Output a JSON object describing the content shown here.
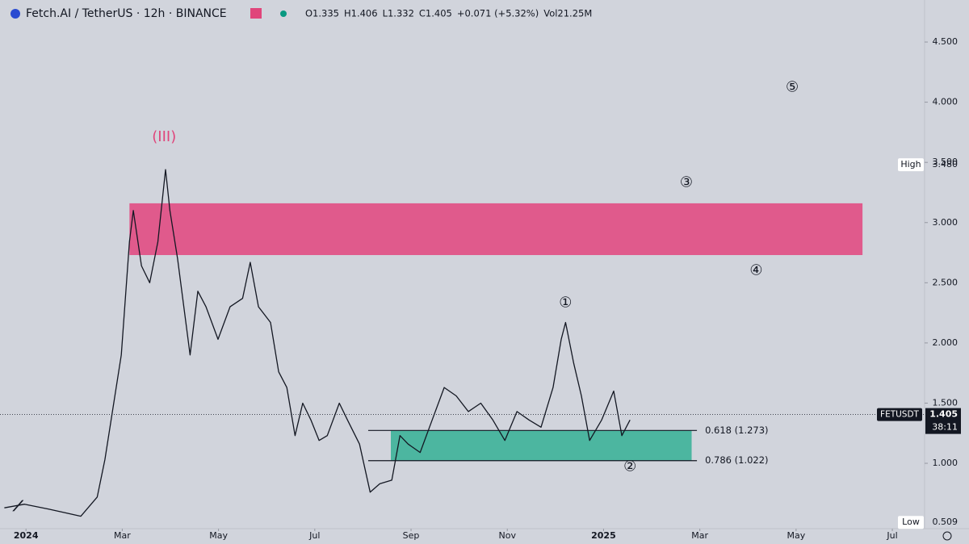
{
  "header": {
    "symbol": "Fetch.AI / TetherUS · 12h · BINANCE",
    "ohlc": [
      "O1.335",
      "H1.406",
      "L1.332",
      "C1.405",
      "+0.071 (+5.32%)",
      "Vol21.25M"
    ]
  },
  "chart_data": {
    "type": "line",
    "x": [
      -0.45,
      -0.03,
      0.47,
      1.14,
      1.48,
      1.64,
      1.98,
      2.15,
      2.23,
      2.4,
      2.57,
      2.74,
      2.9,
      2.99,
      3.15,
      3.41,
      3.57,
      3.74,
      3.99,
      4.24,
      4.5,
      4.66,
      4.83,
      5.08,
      5.25,
      5.42,
      5.59,
      5.75,
      5.92,
      6.09,
      6.26,
      6.51,
      6.68,
      6.93,
      7.15,
      7.35,
      7.6,
      7.77,
      7.94,
      8.19,
      8.44,
      8.69,
      8.94,
      9.19,
      9.45,
      9.7,
      9.95,
      10.2,
      10.45,
      10.7,
      10.95,
      11.12,
      11.21,
      11.38,
      11.54,
      11.71,
      11.96,
      12.21,
      12.38,
      12.55
    ],
    "series": [
      {
        "name": "FETUSDT",
        "color": "#131722",
        "values": [
          0.63,
          0.66,
          0.62,
          0.56,
          0.72,
          1.03,
          1.9,
          2.84,
          3.1,
          2.64,
          2.5,
          2.84,
          3.44,
          3.1,
          2.7,
          1.9,
          2.43,
          2.3,
          2.03,
          2.3,
          2.37,
          2.67,
          2.3,
          2.17,
          1.76,
          1.63,
          1.23,
          1.5,
          1.36,
          1.19,
          1.23,
          1.5,
          1.36,
          1.16,
          0.76,
          0.83,
          0.86,
          1.23,
          1.16,
          1.09,
          1.36,
          1.63,
          1.56,
          1.43,
          1.5,
          1.36,
          1.19,
          1.43,
          1.36,
          1.3,
          1.63,
          2.03,
          2.17,
          1.83,
          1.56,
          1.19,
          1.36,
          1.6,
          1.23,
          1.36
        ]
      }
    ],
    "xlim": [
      -0.54,
      18.67
    ],
    "xticks": [
      {
        "value": 0,
        "label": "2024"
      },
      {
        "value": 2,
        "label": "Mar"
      },
      {
        "value": 4,
        "label": "May"
      },
      {
        "value": 6,
        "label": "Jul"
      },
      {
        "value": 8,
        "label": "Sep"
      },
      {
        "value": 10,
        "label": "Nov"
      },
      {
        "value": 12,
        "label": "2025"
      },
      {
        "value": 14,
        "label": "Mar"
      },
      {
        "value": 16,
        "label": "May"
      },
      {
        "value": 18,
        "label": "Jul"
      }
    ],
    "ylim": [
      0.457,
      4.849
    ],
    "yticks": [
      {
        "value": 1,
        "label": "1.000"
      },
      {
        "value": 1.5,
        "label": "1.500"
      },
      {
        "value": 2,
        "label": "2.000"
      },
      {
        "value": 2.5,
        "label": "2.500"
      },
      {
        "value": 3,
        "label": "3.000"
      },
      {
        "value": 3.5,
        "label": "3.500"
      },
      {
        "value": 4,
        "label": "4.000"
      },
      {
        "value": 4.5,
        "label": "4.500"
      }
    ],
    "last_price": 1.405,
    "countdown": "38:11",
    "high": {
      "label": "High",
      "value": 3.48,
      "value_label": "3.480"
    },
    "low": {
      "label": "Low",
      "value": 0.509,
      "value_label": "0.509"
    },
    "zones": [
      {
        "x": [
          2.15,
          17.38
        ],
        "y": [
          2.73,
          3.16
        ],
        "color": "#e05a8c"
      },
      {
        "x": [
          7.58,
          13.83
        ],
        "y": [
          1.022,
          1.273
        ],
        "color": "#4cb6a0"
      }
    ],
    "fib_levels": [
      {
        "value": 1.273,
        "label": "0.618 (1.273)",
        "x": [
          7.11,
          13.94
        ]
      },
      {
        "value": 1.022,
        "label": "0.786 (1.022)",
        "x": [
          7.11,
          13.94
        ]
      }
    ],
    "annotations": [
      {
        "text": "(III)",
        "x": 2.87,
        "y": 3.71,
        "color": "#e0457b"
      },
      {
        "text": "①",
        "x": 11.21,
        "y": 2.33,
        "color": "#131722"
      },
      {
        "text": "②",
        "x": 12.55,
        "y": 0.97,
        "color": "#131722"
      },
      {
        "text": "③",
        "x": 13.72,
        "y": 3.33,
        "color": "#131722"
      },
      {
        "text": "④",
        "x": 15.17,
        "y": 2.6,
        "color": "#131722"
      },
      {
        "text": "⑤",
        "x": 15.92,
        "y": 4.12,
        "color": "#131722"
      }
    ]
  }
}
